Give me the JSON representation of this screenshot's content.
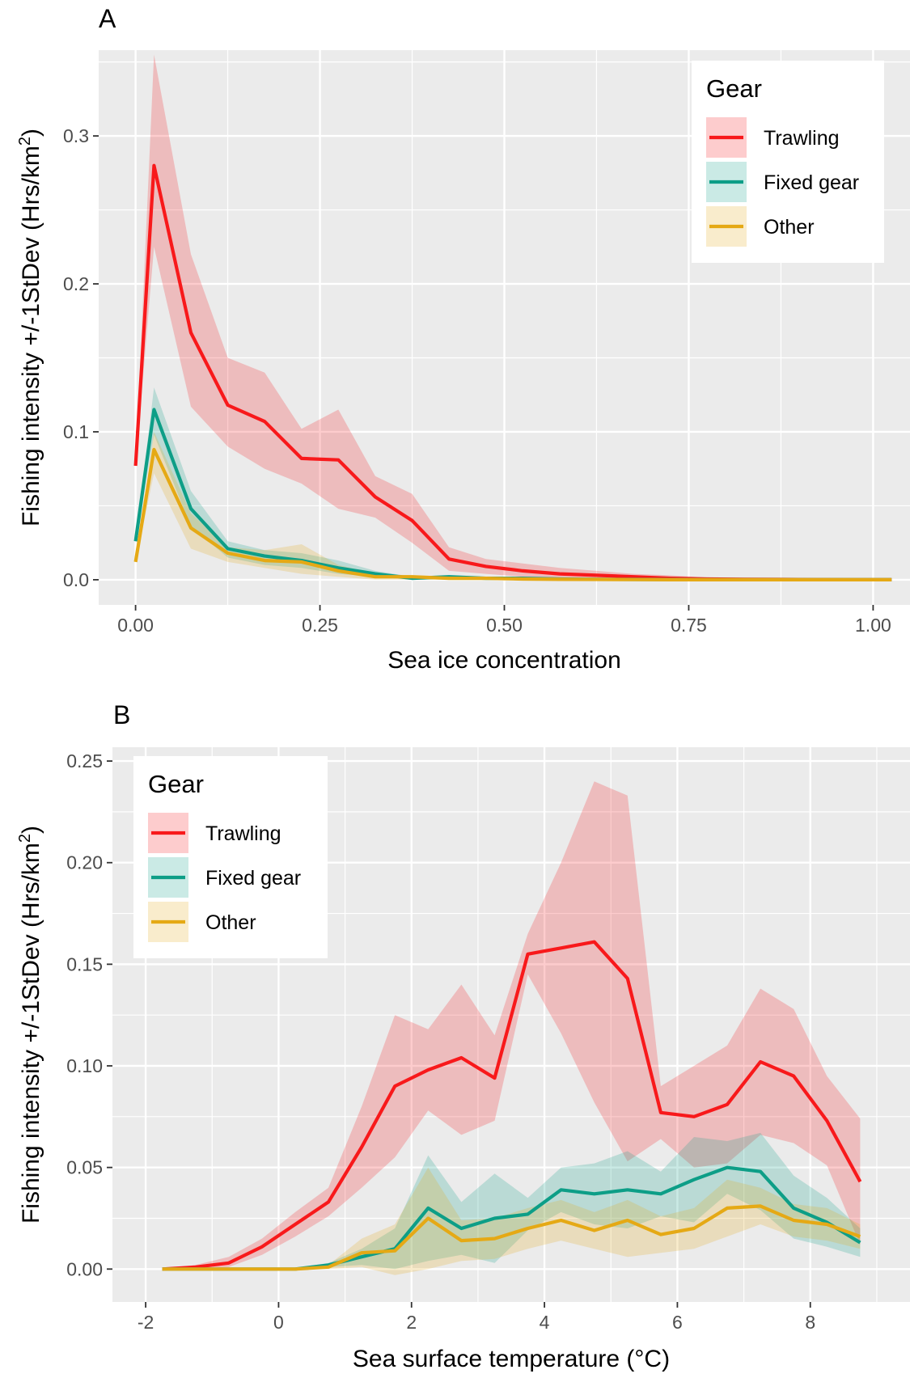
{
  "chart_data": [
    {
      "panel": "A",
      "type": "line",
      "xlabel": "Sea ice concentration",
      "ylabel_prefix": "Fishing intensity +/-1StDev (Hrs/km",
      "ylabel_sup": "2",
      "ylabel_suffix": ")",
      "xlim": [
        -0.05,
        1.05
      ],
      "ylim": [
        -0.017,
        0.358
      ],
      "xticks": [
        0,
        0.25,
        0.5,
        0.75,
        1
      ],
      "xtick_labels": [
        "0.00",
        "0.25",
        "0.50",
        "0.75",
        "1.00"
      ],
      "yticks": [
        0,
        0.1,
        0.2,
        0.3
      ],
      "ytick_labels": [
        "0.0",
        "0.1",
        "0.2",
        "0.3"
      ],
      "grid": true,
      "legend": {
        "title": "Gear",
        "position": "top-right"
      },
      "x": [
        0,
        0.025,
        0.075,
        0.125,
        0.175,
        0.225,
        0.275,
        0.325,
        0.375,
        0.425,
        0.475,
        0.525,
        0.575,
        0.625,
        0.675,
        0.725,
        0.775,
        0.825,
        0.875,
        0.925,
        0.975,
        1.025
      ],
      "series": [
        {
          "name": "Trawling",
          "color": "#F8191B",
          "values": [
            0.077,
            0.28,
            0.167,
            0.118,
            0.107,
            0.082,
            0.081,
            0.056,
            0.04,
            0.014,
            0.009,
            0.006,
            0.004,
            0.003,
            0.002,
            0.001,
            0.0005,
            0.0003,
            0.0002,
            0.0001,
            0,
            0
          ],
          "upper": [
            0.077,
            0.355,
            0.22,
            0.15,
            0.14,
            0.102,
            0.115,
            0.07,
            0.058,
            0.022,
            0.014,
            0.011,
            0.008,
            0.006,
            0.004,
            0.003,
            0.0015,
            0.001,
            0.0005,
            0.0003,
            0.0001,
            0
          ],
          "lower": [
            0.077,
            0.225,
            0.117,
            0.09,
            0.075,
            0.065,
            0.048,
            0.042,
            0.025,
            0.006,
            0.004,
            0.002,
            0.001,
            0.001,
            0.0005,
            0.0002,
            0,
            0,
            0,
            0,
            0,
            0
          ]
        },
        {
          "name": "Fixed gear",
          "color": "#0D9E87",
          "values": [
            0.026,
            0.115,
            0.048,
            0.021,
            0.016,
            0.013,
            0.008,
            0.004,
            0.001,
            0.002,
            0.001,
            0.001,
            0.0005,
            0.0003,
            0.0002,
            0.0001,
            0,
            0,
            0,
            0,
            0,
            0
          ],
          "upper": [
            0.026,
            0.13,
            0.06,
            0.026,
            0.02,
            0.018,
            0.013,
            0.006,
            0.002,
            0.003,
            0.002,
            0.002,
            0.001,
            0.0006,
            0.0004,
            0.0002,
            0,
            0,
            0,
            0,
            0,
            0
          ],
          "lower": [
            0.026,
            0.098,
            0.036,
            0.015,
            0.01,
            0.008,
            0.004,
            0.002,
            0,
            0.0005,
            0.0003,
            0.0002,
            0.0001,
            0,
            0,
            0,
            0,
            0,
            0,
            0,
            0,
            0
          ]
        },
        {
          "name": "Other",
          "color": "#E5A915",
          "values": [
            0.012,
            0.088,
            0.035,
            0.018,
            0.013,
            0.012,
            0.006,
            0.002,
            0.002,
            0.001,
            0.001,
            0.0005,
            0.0003,
            0.0002,
            0.0001,
            0,
            0,
            0,
            0,
            0,
            0,
            0
          ],
          "upper": [
            0.012,
            0.1,
            0.045,
            0.022,
            0.02,
            0.024,
            0.01,
            0.004,
            0.003,
            0.002,
            0.002,
            0.001,
            0.0006,
            0.0004,
            0.0002,
            0,
            0,
            0,
            0,
            0,
            0,
            0
          ],
          "lower": [
            0.012,
            0.072,
            0.021,
            0.012,
            0.008,
            0.004,
            0.002,
            0,
            0,
            0,
            0,
            0,
            0,
            0,
            0,
            0,
            0,
            0,
            0,
            0,
            0,
            0
          ]
        }
      ]
    },
    {
      "panel": "B",
      "type": "line",
      "xlabel": "Sea surface temperature (°C)",
      "ylabel_prefix": "Fishing intensity +/-1StDev (Hrs/km",
      "ylabel_sup": "2",
      "ylabel_suffix": ")",
      "xlim": [
        -2.5,
        9.5
      ],
      "ylim": [
        -0.0162,
        0.2568
      ],
      "xticks": [
        -2,
        0,
        2,
        4,
        6,
        8
      ],
      "xtick_labels": [
        "-2",
        "0",
        "2",
        "4",
        "6",
        "8"
      ],
      "yticks": [
        0,
        0.05,
        0.1,
        0.15,
        0.2,
        0.25
      ],
      "ytick_labels": [
        "0.00",
        "0.05",
        "0.10",
        "0.15",
        "0.20",
        "0.25"
      ],
      "grid": true,
      "legend": {
        "title": "Gear",
        "position": "top-left"
      },
      "x": [
        -1.75,
        -1.25,
        -0.75,
        -0.25,
        0.25,
        0.75,
        1.25,
        1.75,
        2.25,
        2.75,
        3.25,
        3.75,
        4.25,
        4.75,
        5.25,
        5.75,
        6.25,
        6.75,
        7.25,
        7.75,
        8.25,
        8.75
      ],
      "series": [
        {
          "name": "Trawling",
          "color": "#F8191B",
          "values": [
            0,
            0.001,
            0.003,
            0.011,
            0.022,
            0.033,
            0.06,
            0.09,
            0.098,
            0.104,
            0.094,
            0.155,
            0.158,
            0.161,
            0.143,
            0.077,
            0.075,
            0.081,
            0.102,
            0.095,
            0.073,
            0.043
          ],
          "upper": [
            0,
            0.002,
            0.006,
            0.015,
            0.028,
            0.04,
            0.08,
            0.125,
            0.118,
            0.14,
            0.115,
            0.165,
            0.2,
            0.24,
            0.233,
            0.09,
            0.1,
            0.11,
            0.138,
            0.128,
            0.095,
            0.074
          ],
          "lower": [
            0,
            0,
            0.001,
            0.007,
            0.016,
            0.026,
            0.04,
            0.055,
            0.078,
            0.066,
            0.073,
            0.145,
            0.116,
            0.082,
            0.053,
            0.064,
            0.05,
            0.052,
            0.066,
            0.062,
            0.051,
            0.012
          ]
        },
        {
          "name": "Fixed gear",
          "color": "#0D9E87",
          "values": [
            0,
            0,
            0,
            0,
            0,
            0.002,
            0.006,
            0.01,
            0.03,
            0.02,
            0.025,
            0.027,
            0.039,
            0.037,
            0.039,
            0.037,
            0.044,
            0.05,
            0.048,
            0.03,
            0.023,
            0.013
          ],
          "upper": [
            0,
            0,
            0,
            0,
            0.0005,
            0.003,
            0.01,
            0.02,
            0.056,
            0.033,
            0.047,
            0.035,
            0.05,
            0.052,
            0.058,
            0.048,
            0.065,
            0.063,
            0.067,
            0.046,
            0.035,
            0.02
          ],
          "lower": [
            0,
            0,
            0,
            0,
            0,
            0.001,
            0.002,
            0,
            0.004,
            0.007,
            0.003,
            0.019,
            0.028,
            0.022,
            0.02,
            0.026,
            0.023,
            0.037,
            0.029,
            0.015,
            0.011,
            0.006
          ]
        },
        {
          "name": "Other",
          "color": "#E5A915",
          "values": [
            0,
            0,
            0,
            0,
            0,
            0.001,
            0.008,
            0.009,
            0.025,
            0.014,
            0.015,
            0.02,
            0.024,
            0.019,
            0.024,
            0.017,
            0.02,
            0.03,
            0.031,
            0.024,
            0.022,
            0.016
          ],
          "upper": [
            0,
            0,
            0,
            0,
            0,
            0.002,
            0.015,
            0.022,
            0.05,
            0.024,
            0.025,
            0.03,
            0.034,
            0.028,
            0.034,
            0.026,
            0.03,
            0.044,
            0.04,
            0.032,
            0.03,
            0.022
          ],
          "lower": [
            0,
            0,
            0,
            0,
            0,
            0,
            0.001,
            -0.003,
            0,
            0.004,
            0.005,
            0.01,
            0.014,
            0.01,
            0.006,
            0.008,
            0.01,
            0.016,
            0.022,
            0.016,
            0.014,
            0.01
          ]
        }
      ]
    }
  ],
  "panels": [
    {
      "tag": "A"
    },
    {
      "tag": "B"
    }
  ]
}
